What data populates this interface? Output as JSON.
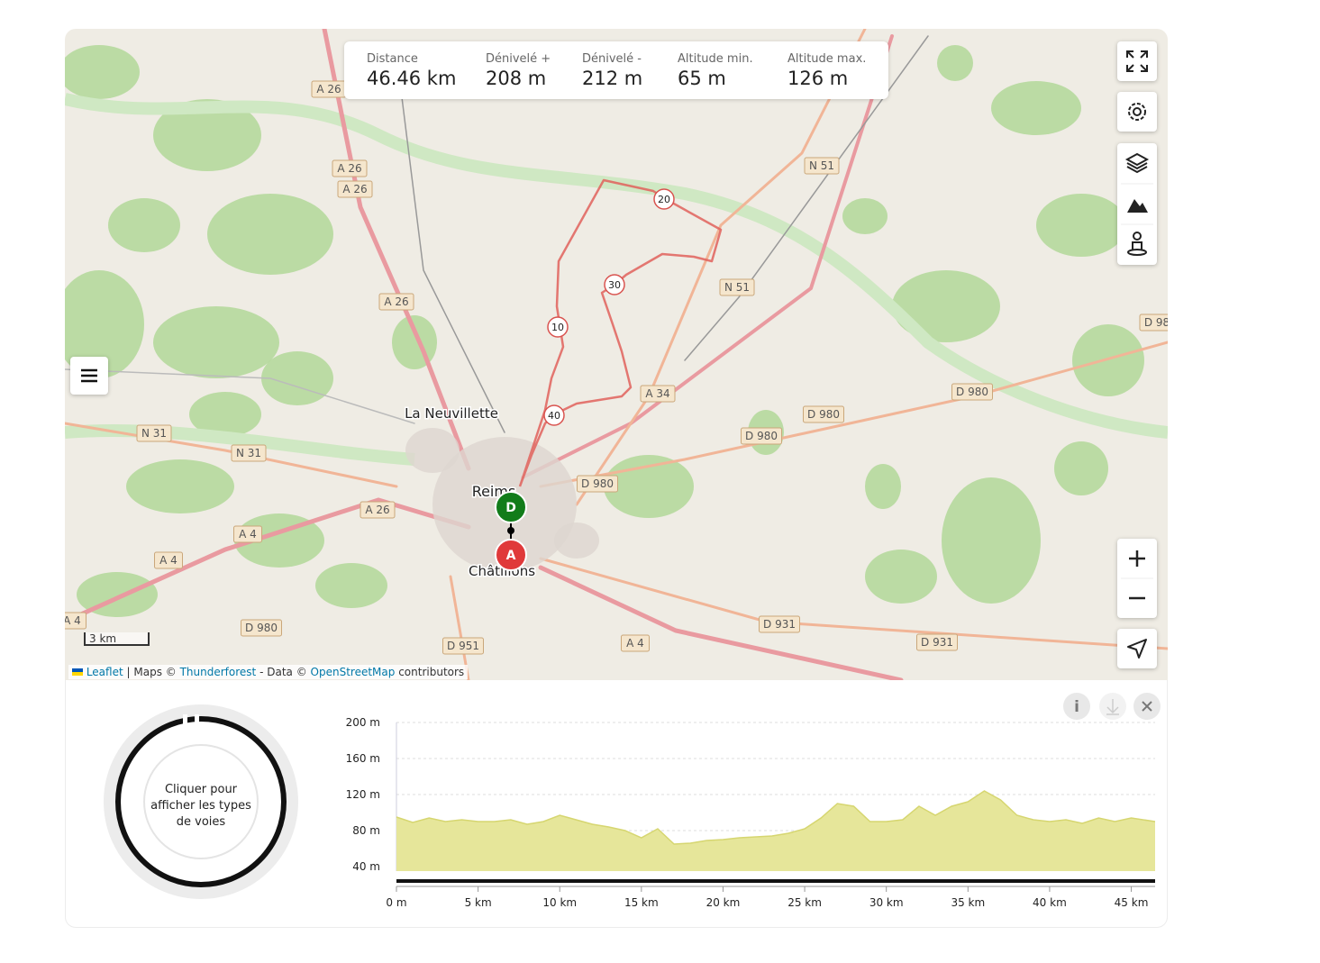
{
  "stats": [
    {
      "label": "Distance",
      "value": "46.46 km"
    },
    {
      "label": "Dénivelé +",
      "value": "208 m"
    },
    {
      "label": "Dénivelé -",
      "value": "212 m"
    },
    {
      "label": "Altitude min.",
      "value": "65 m"
    },
    {
      "label": "Altitude max.",
      "value": "126 m"
    }
  ],
  "map": {
    "places": [
      "La Neuvillette",
      "Reims",
      "Châtillons"
    ],
    "road_labels": [
      "A 26",
      "A 26",
      "A 26",
      "A 26",
      "A 26",
      "N 51",
      "N 51",
      "D 98",
      "D 980",
      "D 980",
      "D 980",
      "D 980",
      "A 34",
      "N 31",
      "N 31",
      "A 4",
      "A 4",
      "A 4",
      "D 980",
      "D 951",
      "A 4",
      "D 931",
      "D 931"
    ],
    "route_markers": [
      "10",
      "20",
      "30",
      "40"
    ],
    "start": "D",
    "end": "A",
    "scale": "3 km",
    "attribution": {
      "leaflet": "Leaflet",
      "maps": "| Maps ©",
      "thunderforest": "Thunderforest",
      "data": "- Data ©",
      "osm": "OpenStreetMap",
      "contributors": "contributors"
    }
  },
  "donut": {
    "text": "Cliquer pour afficher les types de voies"
  },
  "chart_data": {
    "type": "area",
    "color": "#e6e69a",
    "x": [
      0,
      1,
      2,
      3,
      4,
      5,
      6,
      7,
      8,
      9,
      10,
      11,
      12,
      13,
      14,
      15,
      16,
      17,
      18,
      19,
      20,
      21,
      22,
      23,
      24,
      25,
      26,
      27,
      28,
      29,
      30,
      31,
      32,
      33,
      34,
      35,
      36,
      37,
      38,
      39,
      40,
      41,
      42,
      43,
      44,
      45,
      46.46
    ],
    "values": [
      95,
      89,
      94,
      90,
      92,
      90,
      90,
      92,
      87,
      90,
      97,
      92,
      87,
      84,
      80,
      72,
      82,
      65,
      66,
      69,
      70,
      72,
      73,
      74,
      77,
      82,
      94,
      110,
      107,
      90,
      90,
      92,
      107,
      97,
      107,
      112,
      124,
      114,
      97,
      92,
      90,
      92,
      88,
      94,
      90,
      94,
      90
    ],
    "xlim": [
      0,
      46.46
    ],
    "xticks": [
      {
        "value": 0,
        "label": "0 m"
      },
      {
        "value": 5,
        "label": "5 km"
      },
      {
        "value": 10,
        "label": "10 km"
      },
      {
        "value": 15,
        "label": "15 km"
      },
      {
        "value": 20,
        "label": "20 km"
      },
      {
        "value": 25,
        "label": "25 km"
      },
      {
        "value": 30,
        "label": "30 km"
      },
      {
        "value": 35,
        "label": "35 km"
      },
      {
        "value": 40,
        "label": "40 km"
      },
      {
        "value": 45,
        "label": "45 km"
      }
    ],
    "ylim": [
      35,
      200
    ],
    "yticks": [
      {
        "value": 40,
        "label": "40 m"
      },
      {
        "value": 80,
        "label": "80 m"
      },
      {
        "value": 120,
        "label": "120 m"
      },
      {
        "value": 160,
        "label": "160 m"
      },
      {
        "value": 200,
        "label": "200 m"
      }
    ],
    "grid": true
  }
}
